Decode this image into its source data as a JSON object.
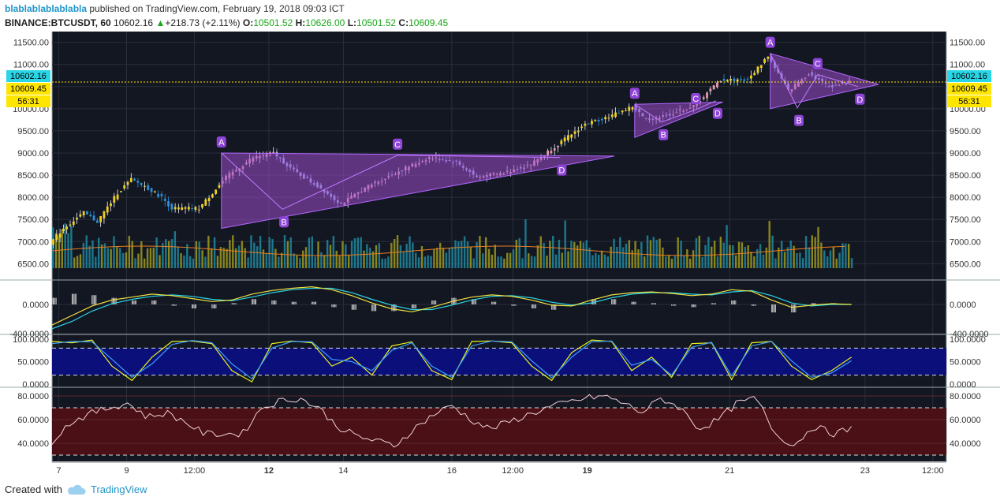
{
  "header": {
    "user": "blablablablablabla",
    "published_text": "published on TradingView.com, February 19, 2018 09:03 ICT",
    "symbol": "BINANCE:BTCUSDT, 60",
    "last": "10602.16",
    "arrow": "▲",
    "change": "+218.73 (+2.11%)",
    "o_label": "O:",
    "o_value": "10501.52",
    "h_label": "H:",
    "h_value": "10626.00",
    "l_label": "L:",
    "l_value": "10501.52",
    "c_label": "C:",
    "c_value": "10609.45"
  },
  "footer": {
    "created_text": "Created with",
    "brand": "TradingView"
  },
  "colors": {
    "panel_bg": "#131722",
    "grid": "#2a2e39",
    "up": "#f0d020",
    "down": "#2f8fd6",
    "pattern_fill": "#9c4dcc",
    "badge": "#8e44d6",
    "stoch_band": "#0b0f7a",
    "rsi_band": "#4a1015",
    "current_price": "#2ad6e6",
    "highlight_price": "#ffe600"
  },
  "chart_data": [
    {
      "type": "candlestick",
      "panel": "price",
      "y_ticks": [
        "11500.00",
        "11000.00",
        "10500.00",
        "10000.00",
        "9500.00",
        "9000.00",
        "8500.00",
        "8000.00",
        "7500.00",
        "7000.00",
        "6500.00"
      ],
      "ylim": [
        6400,
        11600
      ],
      "x_ticks": [
        "7",
        "9",
        "12:00",
        "12",
        "14",
        "16",
        "12:00",
        "19",
        "21",
        "23",
        "12:00"
      ],
      "price_labels": [
        "10602.16",
        "10609.45",
        "56:31"
      ],
      "path_points": [
        {
          "t": 0,
          "p": 6950
        },
        {
          "t": 4,
          "p": 7300
        },
        {
          "t": 10,
          "p": 7650
        },
        {
          "t": 14,
          "p": 7450
        },
        {
          "t": 20,
          "p": 8100
        },
        {
          "t": 24,
          "p": 8400
        },
        {
          "t": 28,
          "p": 8250
        },
        {
          "t": 33,
          "p": 8000
        },
        {
          "t": 36,
          "p": 7750
        },
        {
          "t": 44,
          "p": 7750
        },
        {
          "t": 52,
          "p": 8450
        },
        {
          "t": 60,
          "p": 8900
        },
        {
          "t": 66,
          "p": 9000
        },
        {
          "t": 72,
          "p": 8600
        },
        {
          "t": 80,
          "p": 8200
        },
        {
          "t": 86,
          "p": 7850
        },
        {
          "t": 94,
          "p": 8250
        },
        {
          "t": 102,
          "p": 8550
        },
        {
          "t": 112,
          "p": 8900
        },
        {
          "t": 120,
          "p": 8800
        },
        {
          "t": 126,
          "p": 8450
        },
        {
          "t": 134,
          "p": 8550
        },
        {
          "t": 142,
          "p": 8750
        },
        {
          "t": 150,
          "p": 9200
        },
        {
          "t": 158,
          "p": 9650
        },
        {
          "t": 166,
          "p": 9850
        },
        {
          "t": 172,
          "p": 10050
        },
        {
          "t": 176,
          "p": 9750
        },
        {
          "t": 182,
          "p": 9850
        },
        {
          "t": 190,
          "p": 10050
        },
        {
          "t": 198,
          "p": 10650
        },
        {
          "t": 206,
          "p": 10650
        },
        {
          "t": 212,
          "p": 11200
        },
        {
          "t": 218,
          "p": 10400
        },
        {
          "t": 224,
          "p": 10800
        },
        {
          "t": 230,
          "p": 10500
        },
        {
          "t": 236,
          "p": 10600
        }
      ],
      "patterns": [
        {
          "points": [
            "A",
            "B",
            "C",
            "D"
          ],
          "A": [
            50,
            9000
          ],
          "B": [
            68,
            7730
          ],
          "C": [
            102,
            8950
          ],
          "D": [
            150,
            8900
          ],
          "upper_left": [
            50,
            9000
          ],
          "lower_left": [
            50,
            7300
          ]
        },
        {
          "points": [
            "A",
            "B",
            "C",
            "D"
          ],
          "A": [
            172,
            10100
          ],
          "B": [
            180,
            9700
          ],
          "C": [
            190,
            9980
          ],
          "D": [
            196,
            10180
          ],
          "upper_left": [
            172,
            10100
          ],
          "lower_left": [
            172,
            9350
          ]
        },
        {
          "points": [
            "A",
            "B",
            "C",
            "D"
          ],
          "A": [
            212,
            11250
          ],
          "B": [
            220,
            10020
          ],
          "C": [
            226,
            10770
          ],
          "D": [
            238,
            10500
          ],
          "upper_left": [
            212,
            11250
          ],
          "lower_left": [
            212,
            10000
          ]
        }
      ]
    },
    {
      "type": "line",
      "panel": "macd",
      "y_ticks": [
        "0.0000",
        "-400.0000"
      ],
      "series": [
        {
          "values": [
            -280,
            -150,
            -20,
            60,
            100,
            140,
            120,
            80,
            40,
            60,
            140,
            190,
            220,
            240,
            200,
            120,
            20,
            -60,
            -100,
            -40,
            40,
            100,
            130,
            110,
            60,
            -10,
            -20,
            60,
            130,
            160,
            170,
            150,
            120,
            140,
            200,
            180,
            60,
            -40,
            -10,
            10,
            0
          ]
        },
        {
          "values": [
            -330,
            -230,
            -90,
            10,
            70,
            110,
            130,
            110,
            70,
            50,
            100,
            160,
            200,
            220,
            220,
            160,
            70,
            -10,
            -70,
            -70,
            -10,
            60,
            110,
            120,
            90,
            30,
            -10,
            20,
            90,
            140,
            160,
            160,
            140,
            130,
            170,
            190,
            120,
            20,
            -20,
            0,
            0
          ]
        }
      ]
    },
    {
      "type": "line",
      "panel": "stoch",
      "y_ticks": [
        "100.0000",
        "50.0000",
        "0.0000"
      ],
      "band": [
        20,
        80
      ],
      "series": [
        {
          "values": [
            95,
            92,
            98,
            40,
            8,
            60,
            95,
            96,
            90,
            30,
            5,
            90,
            96,
            92,
            40,
            60,
            20,
            85,
            94,
            30,
            10,
            95,
            96,
            92,
            40,
            8,
            70,
            98,
            95,
            30,
            60,
            15,
            90,
            92,
            10,
            92,
            95,
            40,
            10,
            30,
            60
          ]
        },
        {
          "values": [
            90,
            95,
            94,
            55,
            15,
            45,
            88,
            97,
            92,
            45,
            12,
            80,
            95,
            94,
            55,
            50,
            30,
            75,
            92,
            40,
            15,
            85,
            96,
            94,
            52,
            14,
            60,
            94,
            96,
            42,
            55,
            20,
            82,
            93,
            18,
            85,
            95,
            52,
            15,
            25,
            52
          ]
        }
      ]
    },
    {
      "type": "line",
      "panel": "rsi",
      "y_ticks": [
        "80.0000",
        "60.0000",
        "40.0000"
      ],
      "band": [
        30,
        70
      ],
      "series": [
        {
          "values": [
            42,
            58,
            65,
            70,
            74,
            62,
            66,
            58,
            48,
            48,
            48,
            70,
            76,
            78,
            70,
            54,
            46,
            42,
            38,
            52,
            64,
            72,
            60,
            52,
            58,
            64,
            70,
            74,
            78,
            80,
            74,
            66,
            78,
            70,
            52,
            60,
            74,
            78,
            48,
            38,
            55,
            48,
            52
          ]
        }
      ]
    }
  ]
}
